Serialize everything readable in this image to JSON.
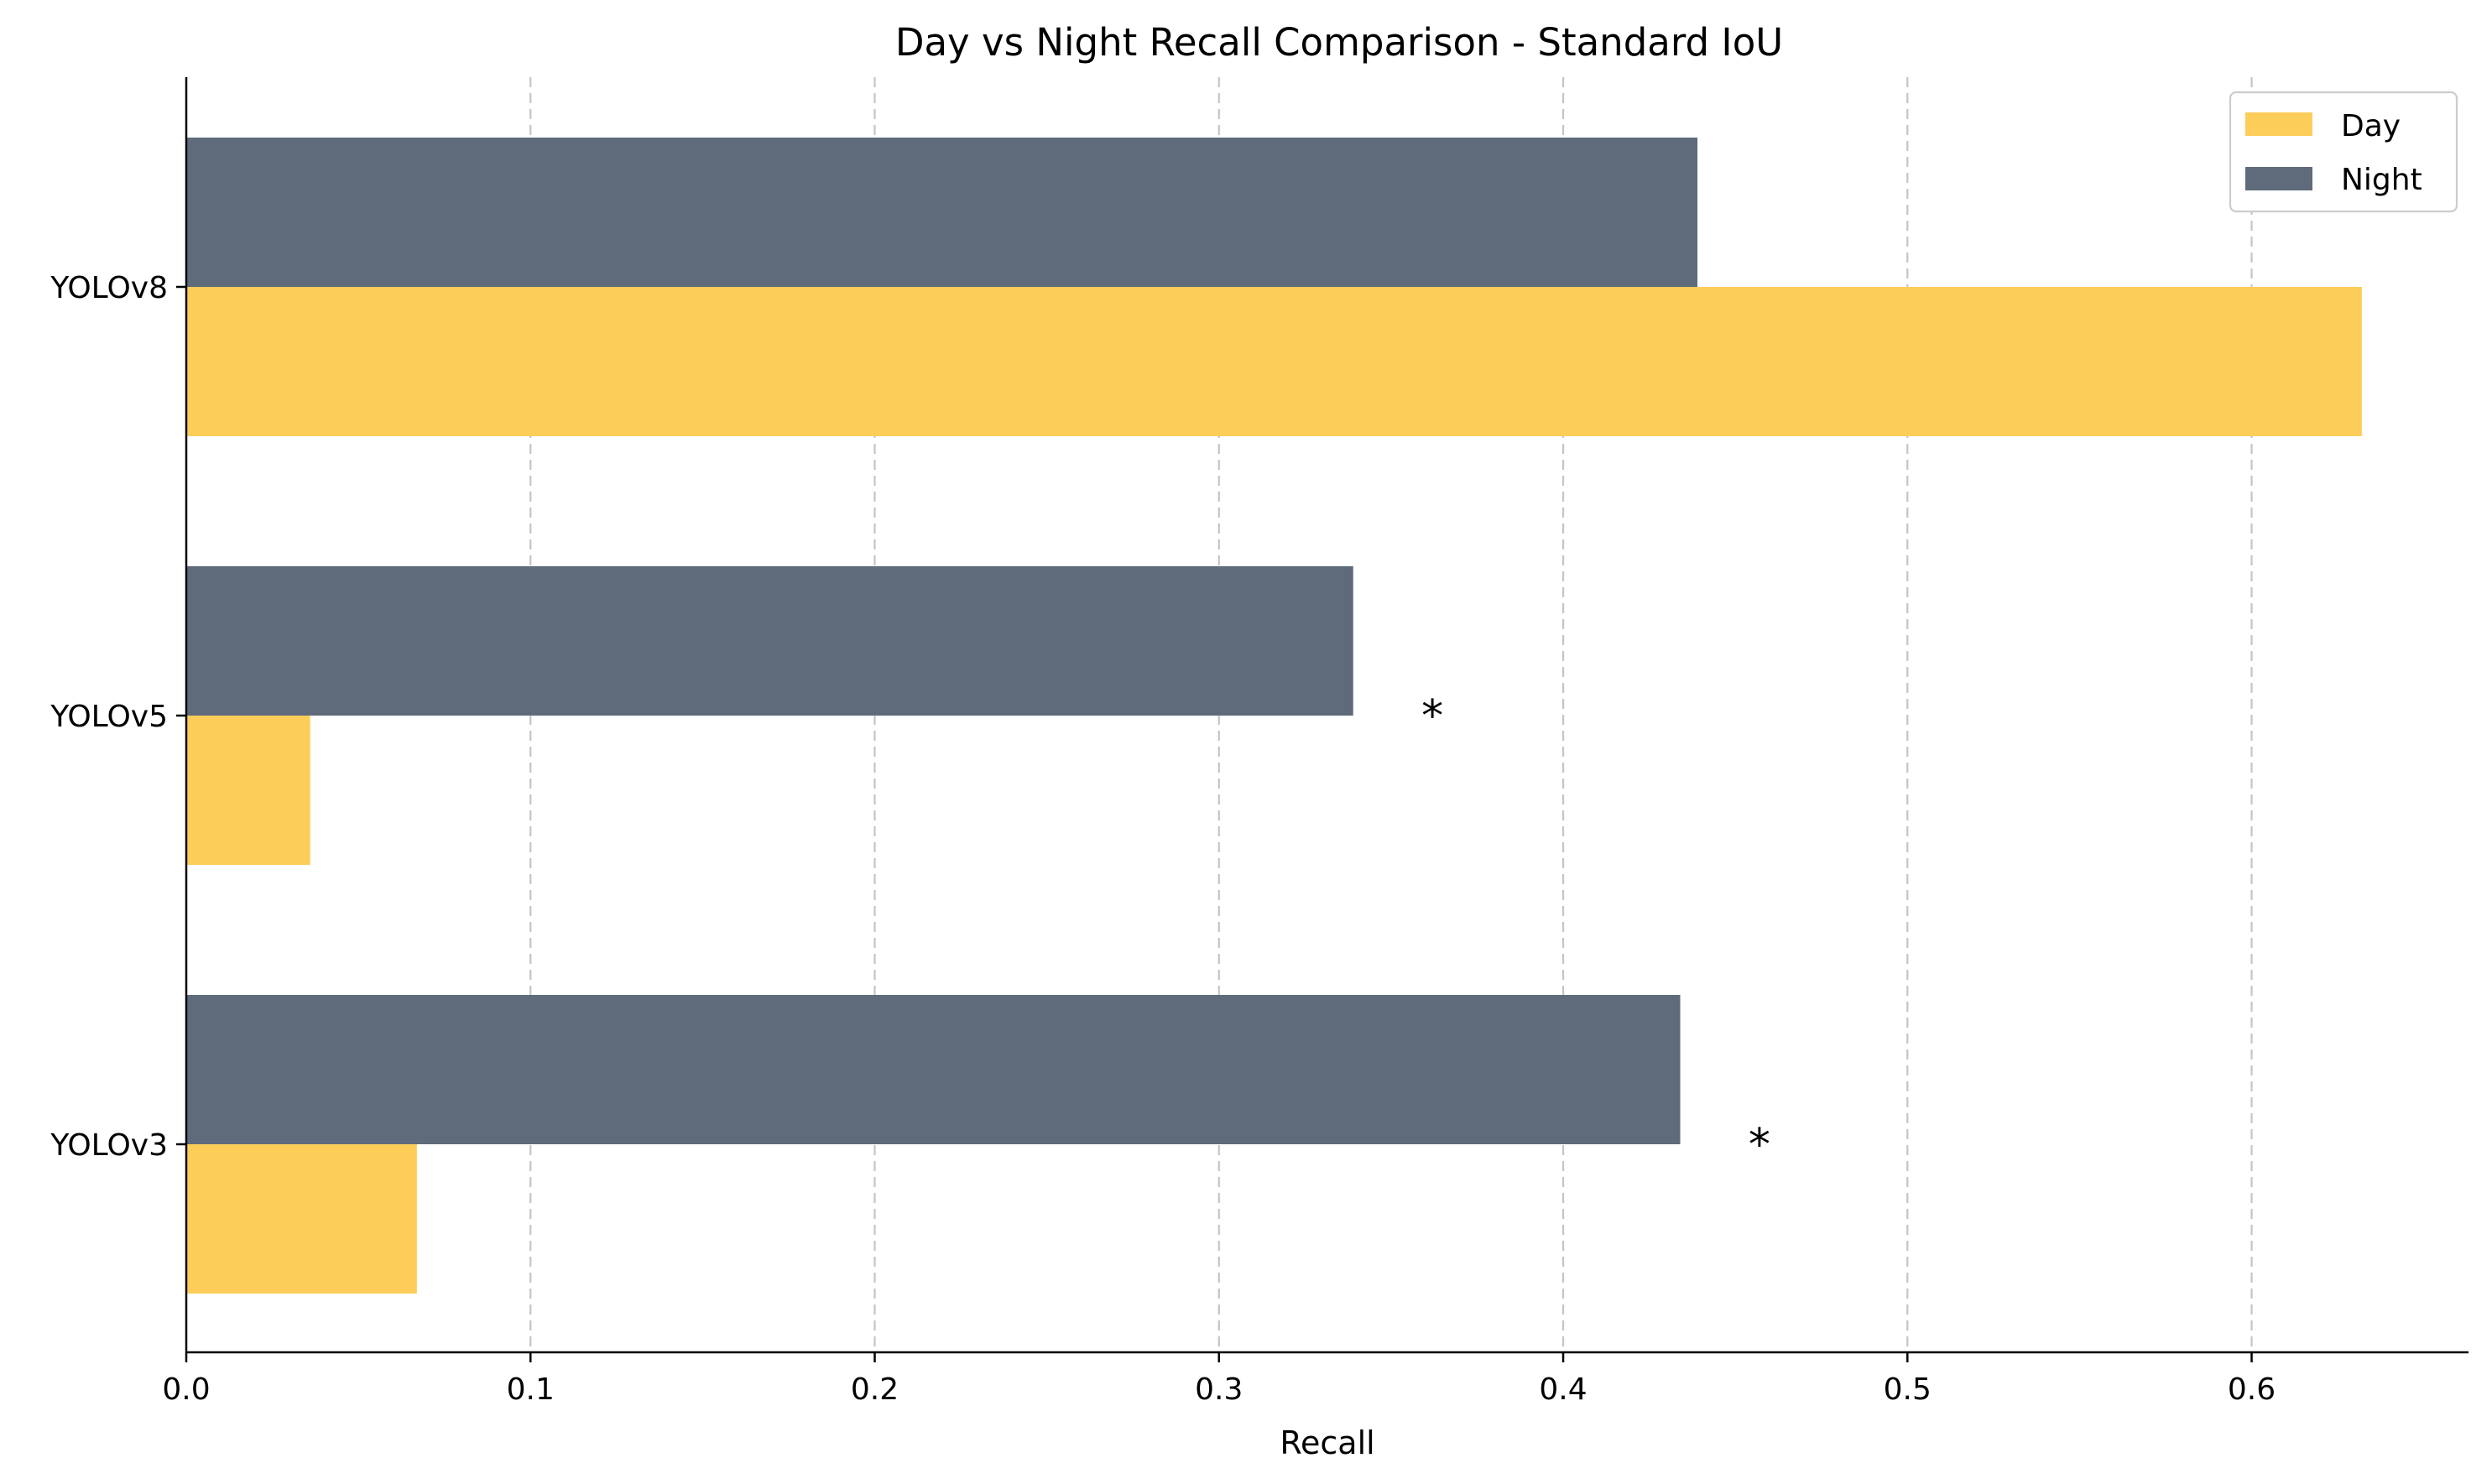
{
  "chart_data": {
    "type": "bar",
    "orientation": "horizontal",
    "title": "Day vs Night Recall Comparison - Standard IoU",
    "xlabel": "Recall",
    "ylabel": "",
    "xlim": [
      0.0,
      0.663
    ],
    "xticks": [
      "0.0",
      "0.1",
      "0.2",
      "0.3",
      "0.4",
      "0.5",
      "0.6"
    ],
    "categories": [
      "YOLOv8",
      "YOLOv5",
      "YOLOv3"
    ],
    "series": [
      {
        "name": "Day",
        "color": "#fdcd5a",
        "values": [
          0.632,
          0.036,
          0.067
        ]
      },
      {
        "name": "Night",
        "color": "#5f6b7b",
        "values": [
          0.439,
          0.339,
          0.434
        ]
      }
    ],
    "annotations": [
      {
        "text": "*",
        "category": "YOLOv5",
        "x": 0.362
      },
      {
        "text": "*",
        "category": "YOLOv3",
        "x": 0.457
      }
    ],
    "grid": "x-dashed",
    "legend": "top-right"
  }
}
